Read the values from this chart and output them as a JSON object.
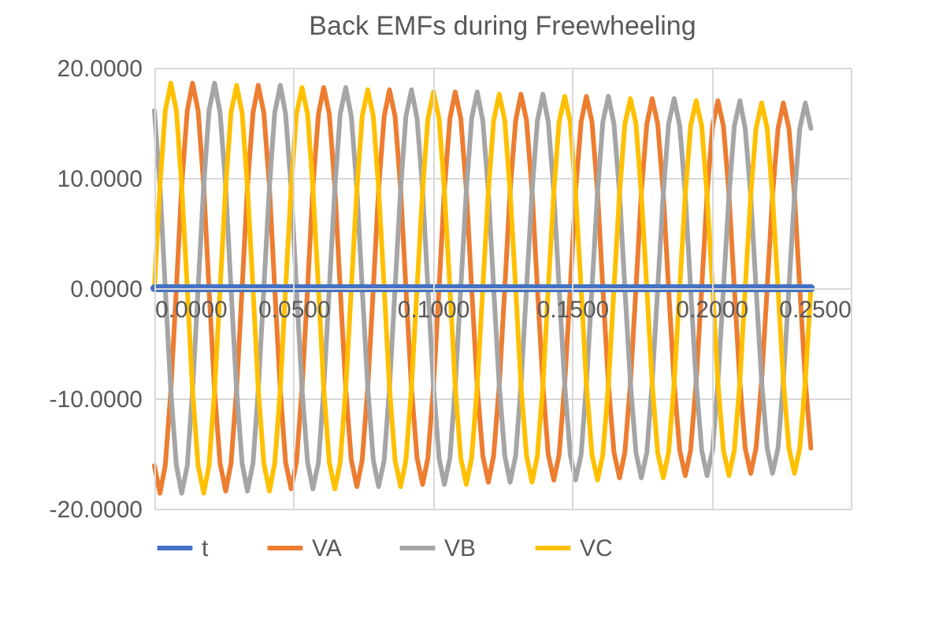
{
  "chart_data": {
    "type": "line",
    "title": "Back EMFs during Freewheeling",
    "x": [
      0,
      0.002,
      0.0039,
      0.0059,
      0.0079,
      0.0098,
      0.0118,
      0.0137,
      0.0157,
      0.0177,
      0.0196,
      0.0216,
      0.0236,
      0.0256,
      0.0275,
      0.0295,
      0.0315,
      0.0334,
      0.0354,
      0.0373,
      0.0393,
      0.0413,
      0.0432,
      0.0452,
      0.0471,
      0.0491,
      0.051,
      0.053,
      0.055,
      0.0569,
      0.0589,
      0.0608,
      0.0628,
      0.0648,
      0.0667,
      0.0687,
      0.0707,
      0.0727,
      0.0746,
      0.0766,
      0.0786,
      0.0805,
      0.0825,
      0.0844,
      0.0864,
      0.0884,
      0.0903,
      0.0923,
      0.0943,
      0.0963,
      0.0982,
      0.1002,
      0.1022,
      0.1041,
      0.1061,
      0.108,
      0.11,
      0.112,
      0.1139,
      0.1159,
      0.1179,
      0.1199,
      0.1218,
      0.1238,
      0.1258,
      0.1277,
      0.1297,
      0.1316,
      0.1336,
      0.1356,
      0.1375,
      0.1395,
      0.1414,
      0.1434,
      0.1453,
      0.1473,
      0.1493,
      0.1512,
      0.1532,
      0.1551,
      0.1571,
      0.1591,
      0.161,
      0.163,
      0.165,
      0.167,
      0.1689,
      0.1709,
      0.1729,
      0.1748,
      0.1768,
      0.1787,
      0.1807,
      0.1827,
      0.1846,
      0.1866,
      0.1886,
      0.1906,
      0.1925,
      0.1945,
      0.1965,
      0.1984,
      0.2004,
      0.2023,
      0.2043,
      0.2063,
      0.2082,
      0.2102,
      0.2121,
      0.2141,
      0.216,
      0.218,
      0.22,
      0.2219,
      0.2239,
      0.2258,
      0.2278,
      0.2298,
      0.2317,
      0.2337,
      0.2357
    ],
    "series": [
      {
        "name": "t",
        "color": "#4472c4",
        "marker": "circle",
        "values": [
          0,
          0,
          0,
          0,
          0,
          0,
          0,
          0,
          0,
          0,
          0,
          0,
          0,
          0,
          0,
          0,
          0,
          0,
          0,
          0,
          0,
          0,
          0,
          0,
          0,
          0,
          0,
          0,
          0,
          0,
          0,
          0,
          0,
          0,
          0,
          0,
          0,
          0,
          0,
          0,
          0,
          0,
          0,
          0,
          0,
          0,
          0,
          0,
          0,
          0,
          0,
          0,
          0,
          0,
          0,
          0,
          0,
          0,
          0,
          0,
          0,
          0,
          0,
          0,
          0,
          0,
          0,
          0,
          0,
          0,
          0,
          0,
          0,
          0,
          0,
          0,
          0,
          0,
          0,
          0,
          0,
          0,
          0,
          0,
          0,
          0,
          0,
          0,
          0,
          0,
          0,
          0,
          0,
          0,
          0,
          0,
          0,
          0,
          0,
          0,
          0,
          0,
          0,
          0,
          0,
          0,
          0,
          0,
          0,
          0,
          0,
          0,
          0,
          0,
          0,
          0,
          0,
          0,
          0,
          0,
          0
        ]
      },
      {
        "name": "VA",
        "color": "#ed7d31",
        "values": [
          -16.1,
          -18.6,
          -16.1,
          -9.3,
          0,
          9.3,
          16.1,
          18.6,
          16.1,
          9.3,
          0,
          -9.3,
          -15.9,
          -18.4,
          -15.9,
          -9.2,
          0,
          9.2,
          15.9,
          18.4,
          15.9,
          9.2,
          0,
          -9.2,
          -15.8,
          -18.2,
          -15.8,
          -9.1,
          0,
          9.1,
          15.8,
          18.2,
          15.8,
          9.1,
          0,
          -9.1,
          -15.6,
          -18,
          -15.6,
          -9,
          0,
          9,
          15.6,
          18,
          15.6,
          9,
          0,
          -9,
          -15.4,
          -17.8,
          -15.4,
          -8.9,
          0,
          8.9,
          15.4,
          17.8,
          15.4,
          8.9,
          0,
          -8.9,
          -15.2,
          -17.6,
          -15.2,
          -8.8,
          0,
          8.8,
          15.2,
          17.6,
          15.2,
          8.8,
          0,
          -8.8,
          -15.1,
          -17.4,
          -15.1,
          -8.7,
          0,
          8.7,
          15.1,
          17.4,
          15.1,
          8.7,
          0,
          -8.7,
          -14.9,
          -17.2,
          -14.9,
          -8.6,
          0,
          8.6,
          14.9,
          17.2,
          14.9,
          8.6,
          0,
          -8.6,
          -14.7,
          -17,
          -14.7,
          -8.5,
          0,
          8.5,
          14.7,
          17,
          14.7,
          8.5,
          0,
          -8.5,
          -14.5,
          -16.8,
          -14.5,
          -8.4,
          0,
          8.4,
          14.5,
          16.8,
          14.5,
          8.4,
          0,
          -8.4,
          -14.5
        ]
      },
      {
        "name": "VB",
        "color": "#a5a5a5",
        "values": [
          16.1,
          9.3,
          0,
          -9.3,
          -16.1,
          -18.6,
          -16.1,
          -9.3,
          0,
          9.3,
          16.1,
          18.6,
          15.9,
          9.2,
          0,
          -9.2,
          -15.9,
          -18.4,
          -15.9,
          -9.2,
          0,
          9.2,
          15.9,
          18.4,
          15.8,
          9.1,
          0,
          -9.1,
          -15.8,
          -18.2,
          -15.8,
          -9.1,
          0,
          9.1,
          15.8,
          18.2,
          15.6,
          9,
          0,
          -9,
          -15.6,
          -18,
          -15.6,
          -9,
          0,
          9,
          15.6,
          18,
          15.4,
          8.9,
          0,
          -8.9,
          -15.4,
          -17.8,
          -15.4,
          -8.9,
          0,
          8.9,
          15.4,
          17.8,
          15.2,
          8.8,
          0,
          -8.8,
          -15.2,
          -17.6,
          -15.2,
          -8.8,
          0,
          8.8,
          15.2,
          17.6,
          15.1,
          8.7,
          0,
          -8.7,
          -15.1,
          -17.4,
          -15.1,
          -8.7,
          0,
          8.7,
          15.1,
          17.4,
          14.9,
          8.6,
          0,
          -8.6,
          -14.9,
          -17.2,
          -14.9,
          -8.6,
          0,
          8.6,
          14.9,
          17.2,
          14.7,
          8.5,
          0,
          -8.5,
          -14.7,
          -17,
          -14.7,
          -8.5,
          0,
          8.5,
          14.7,
          17,
          14.5,
          8.4,
          0,
          -8.4,
          -14.5,
          -16.8,
          -14.5,
          -8.4,
          0,
          8.4,
          14.5,
          16.8,
          14.5
        ]
      },
      {
        "name": "VC",
        "color": "#ffc000",
        "values": [
          0,
          9.3,
          16.1,
          18.6,
          16.1,
          9.3,
          0,
          -9.3,
          -16.1,
          -18.6,
          -16.1,
          -9.3,
          0,
          9.2,
          15.9,
          18.4,
          15.9,
          9.2,
          0,
          -9.2,
          -15.9,
          -18.4,
          -15.9,
          -9.2,
          0,
          9.1,
          15.8,
          18.2,
          15.8,
          9.1,
          0,
          -9.1,
          -15.8,
          -18.2,
          -15.8,
          -9.1,
          0,
          9,
          15.6,
          18,
          15.6,
          9,
          0,
          -9,
          -15.6,
          -18,
          -15.6,
          -9,
          0,
          8.9,
          15.4,
          17.8,
          15.4,
          8.9,
          0,
          -8.9,
          -15.4,
          -17.8,
          -15.4,
          -8.9,
          0,
          8.8,
          15.2,
          17.6,
          15.2,
          8.8,
          0,
          -8.8,
          -15.2,
          -17.6,
          -15.2,
          -8.8,
          0,
          8.7,
          15.1,
          17.4,
          15.1,
          8.7,
          0,
          -8.7,
          -15.1,
          -17.4,
          -15.1,
          -8.7,
          0,
          8.6,
          14.9,
          17.2,
          14.9,
          8.6,
          0,
          -8.6,
          -14.9,
          -17.2,
          -14.9,
          -8.6,
          0,
          8.5,
          14.7,
          17,
          14.7,
          8.5,
          0,
          -8.5,
          -14.7,
          -17,
          -14.7,
          -8.5,
          0,
          8.4,
          14.5,
          16.8,
          14.5,
          8.4,
          0,
          -8.4,
          -14.5,
          -16.8,
          -14.5,
          -8.4,
          0
        ]
      }
    ],
    "xlim": [
      0,
      0.25
    ],
    "xticks": [
      {
        "value": 0,
        "label": "0.0000"
      },
      {
        "value": 0.05,
        "label": "0.0500"
      },
      {
        "value": 0.1,
        "label": "0.1000"
      },
      {
        "value": 0.15,
        "label": "0.1500"
      },
      {
        "value": 0.2,
        "label": "0.2000"
      },
      {
        "value": 0.25,
        "label": "0.2500"
      }
    ],
    "ylim": [
      -20,
      20
    ],
    "yticks": [
      {
        "value": -20,
        "label": "-20.0000"
      },
      {
        "value": -10,
        "label": "-10.0000"
      },
      {
        "value": 0,
        "label": "0.0000"
      },
      {
        "value": 10,
        "label": "10.0000"
      },
      {
        "value": 20,
        "label": "20.0000"
      }
    ],
    "grid": true,
    "legend": "bottom",
    "line_style": "solid"
  }
}
